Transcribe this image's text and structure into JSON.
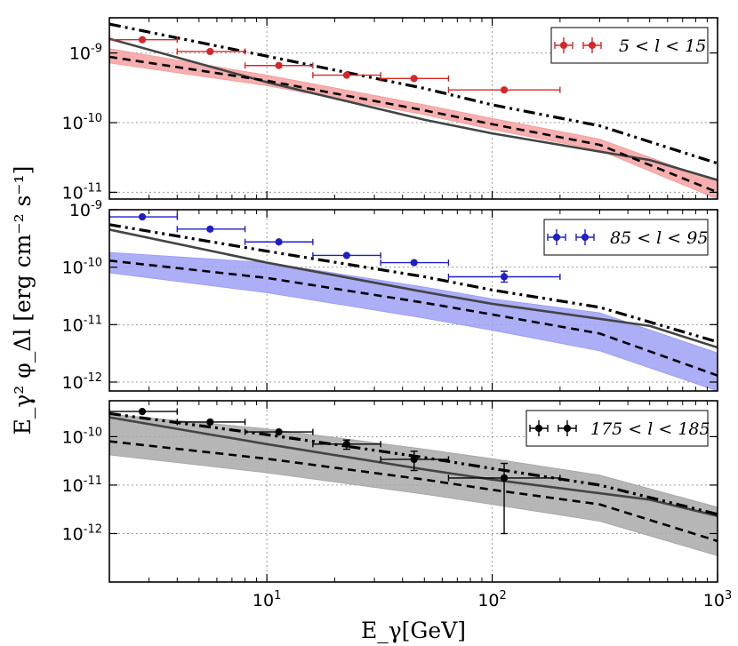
{
  "chart_data": {
    "type": "line",
    "xscale": "log",
    "xlim": [
      2,
      1000
    ],
    "xlabel": "E_γ[GeV]",
    "ylabel": "E_γ² φ_Δl [erg cm⁻² s⁻¹]",
    "x_ticks": [
      {
        "value": 10,
        "base": "10",
        "exp": "1"
      },
      {
        "value": 100,
        "base": "10",
        "exp": "2"
      },
      {
        "value": 1000,
        "base": "10",
        "exp": "3"
      }
    ],
    "panels": [
      {
        "id": "p1",
        "legend": "5 < l < 15",
        "color": "#d62728",
        "band_color": "#f4a0a0",
        "ylim": [
          8e-12,
          3.2e-09
        ],
        "y_ticks": [
          {
            "value": 1e-09,
            "base": "10",
            "exp": "-9"
          },
          {
            "value": 1e-10,
            "base": "10",
            "exp": "-10"
          },
          {
            "value": 1e-11,
            "base": "10",
            "exp": "-11"
          }
        ],
        "data_points": [
          {
            "x": 2.8,
            "y": 1.55e-09,
            "xlo": 2.0,
            "xhi": 4.0
          },
          {
            "x": 5.6,
            "y": 1.05e-09,
            "xlo": 4.0,
            "xhi": 8.0
          },
          {
            "x": 11.3,
            "y": 6.6e-10,
            "xlo": 8.0,
            "xhi": 16.0
          },
          {
            "x": 22.6,
            "y": 4.8e-10,
            "xlo": 16.0,
            "xhi": 32.0
          },
          {
            "x": 45,
            "y": 4.3e-10,
            "xlo": 32.0,
            "xhi": 64.0
          },
          {
            "x": 113,
            "y": 2.95e-10,
            "xlo": 64.0,
            "xhi": 200.0
          }
        ],
        "series": [
          {
            "name": "solid",
            "x": [
              2,
              10,
              50,
              100,
              500,
              1000
            ],
            "y": [
              1.6e-09,
              3.8e-10,
              1.1e-10,
              7e-11,
              2.9e-11,
              1.5e-11
            ]
          },
          {
            "name": "dashed",
            "x": [
              2,
              10,
              50,
              100,
              300,
              1000
            ],
            "y": [
              8.8e-10,
              4e-10,
              1.5e-10,
              9.5e-11,
              4.8e-11,
              1e-11
            ]
          },
          {
            "name": "dash-dot",
            "x": [
              2,
              10,
              50,
              100,
              300,
              1000
            ],
            "y": [
              2.6e-09,
              9e-10,
              3.1e-10,
              1.8e-10,
              9e-11,
              2.6e-11
            ]
          }
        ],
        "band": {
          "x": [
            2,
            10,
            50,
            100,
            300,
            1000
          ],
          "lo": [
            7.2e-10,
            3.4e-10,
            1.3e-10,
            8e-11,
            4e-11,
            8e-12
          ],
          "hi": [
            1.15e-09,
            4.8e-10,
            1.8e-10,
            1.15e-10,
            5.8e-11,
            1.4e-11
          ]
        }
      },
      {
        "id": "p2",
        "legend": "85 < l < 95",
        "color": "#1f1fc8",
        "band_color": "#9ea0f4",
        "ylim": [
          7e-13,
          1e-09
        ],
        "y_ticks": [
          {
            "value": 1e-09,
            "base": "10",
            "exp": "-9"
          },
          {
            "value": 1e-10,
            "base": "10",
            "exp": "-10"
          },
          {
            "value": 1e-11,
            "base": "10",
            "exp": "-11"
          },
          {
            "value": 1e-12,
            "base": "10",
            "exp": "-12"
          }
        ],
        "data_points": [
          {
            "x": 2.8,
            "y": 7.5e-10,
            "xlo": 2.0,
            "xhi": 4.0
          },
          {
            "x": 5.6,
            "y": 4.6e-10,
            "xlo": 4.0,
            "xhi": 8.0
          },
          {
            "x": 11.3,
            "y": 2.75e-10,
            "xlo": 8.0,
            "xhi": 16.0
          },
          {
            "x": 22.6,
            "y": 1.6e-10,
            "xlo": 16.0,
            "xhi": 32.0
          },
          {
            "x": 45,
            "y": 1.2e-10,
            "xlo": 32.0,
            "xhi": 64.0
          },
          {
            "x": 113,
            "y": 6.8e-11,
            "xlo": 64.0,
            "xhi": 200.0,
            "ylo": 5.5e-11,
            "yhi": 8.5e-11
          }
        ],
        "series": [
          {
            "name": "solid",
            "x": [
              2,
              10,
              50,
              100,
              500,
              1000
            ],
            "y": [
              4.5e-10,
              1.2e-10,
              3.7e-11,
              2.3e-11,
              9.5e-12,
              4e-12
            ]
          },
          {
            "name": "dashed",
            "x": [
              2,
              10,
              50,
              100,
              300,
              1000
            ],
            "y": [
              1.3e-10,
              6.5e-11,
              2.4e-11,
              1.5e-11,
              7e-12,
              1.3e-12
            ]
          },
          {
            "name": "dash-dot",
            "x": [
              2,
              10,
              50,
              100,
              300,
              1000
            ],
            "y": [
              5.5e-10,
              1.9e-10,
              6.8e-11,
              4e-11,
              2e-11,
              5e-12
            ]
          }
        ],
        "band": {
          "x": [
            2,
            10,
            50,
            100,
            300,
            1000
          ],
          "lo": [
            8e-11,
            3.6e-11,
            1.3e-11,
            8e-12,
            3.5e-12,
            7e-13
          ],
          "hi": [
            1.8e-10,
            1.2e-10,
            4.5e-11,
            2.8e-11,
            1.6e-11,
            3.2e-12
          ]
        }
      },
      {
        "id": "p3",
        "legend": "175 < l < 185",
        "color": "#000000",
        "band_color": "#a9a9a9",
        "ylim": [
          1e-13,
          5.5e-10
        ],
        "y_ticks": [
          {
            "value": 1e-10,
            "base": "10",
            "exp": "-10"
          },
          {
            "value": 1e-11,
            "base": "10",
            "exp": "-11"
          },
          {
            "value": 1e-12,
            "base": "10",
            "exp": "-12"
          }
        ],
        "data_points": [
          {
            "x": 2.8,
            "y": 3.3e-10,
            "xlo": 2.0,
            "xhi": 4.0
          },
          {
            "x": 5.6,
            "y": 2e-10,
            "xlo": 4.0,
            "xhi": 8.0
          },
          {
            "x": 11.3,
            "y": 1.25e-10,
            "xlo": 8.0,
            "xhi": 16.0
          },
          {
            "x": 22.6,
            "y": 7e-11,
            "xlo": 16.0,
            "xhi": 32.0,
            "ylo": 5.5e-11,
            "yhi": 8.5e-11
          },
          {
            "x": 45,
            "y": 3.4e-11,
            "xlo": 32.0,
            "xhi": 64.0,
            "ylo": 2e-11,
            "yhi": 5e-11
          },
          {
            "x": 113,
            "y": 1.4e-11,
            "xlo": 64.0,
            "xhi": 200.0,
            "ylo": 1e-12,
            "yhi": 2.8e-11
          }
        ],
        "series": [
          {
            "name": "solid",
            "x": [
              2,
              10,
              50,
              100,
              500,
              1000
            ],
            "y": [
              2.5e-10,
              7e-11,
              2.1e-11,
              1.3e-11,
              5e-12,
              2.3e-12
            ]
          },
          {
            "name": "dashed",
            "x": [
              2,
              10,
              50,
              100,
              300,
              1000
            ],
            "y": [
              8e-11,
              3.5e-11,
              1.3e-11,
              8e-12,
              4e-12,
              7e-13
            ]
          },
          {
            "name": "dash-dot",
            "x": [
              2,
              10,
              50,
              100,
              300,
              1000
            ],
            "y": [
              3e-10,
              1.1e-10,
              3.7e-11,
              2.2e-11,
              1e-11,
              2.5e-12
            ]
          }
        ],
        "band": {
          "x": [
            2,
            10,
            50,
            100,
            300,
            1000
          ],
          "lo": [
            4.2e-11,
            1.8e-11,
            6.5e-12,
            4e-12,
            1.8e-12,
            3.5e-13
          ],
          "hi": [
            2.9e-10,
            1.45e-10,
            5.5e-11,
            3.5e-11,
            1.6e-11,
            3.5e-12
          ]
        }
      }
    ]
  }
}
